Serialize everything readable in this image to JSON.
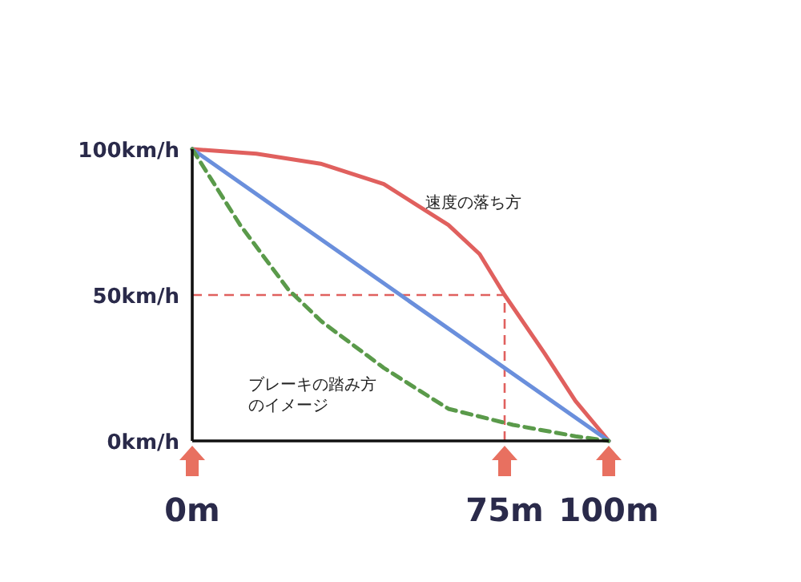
{
  "chart_data": {
    "type": "line",
    "xlim": [
      0,
      100
    ],
    "ylim": [
      0,
      100
    ],
    "xticks": [
      {
        "value": 0,
        "label": "0m"
      },
      {
        "value": 75,
        "label": "75m"
      },
      {
        "value": 100,
        "label": "100m"
      }
    ],
    "yticks": [
      {
        "value": 0,
        "label": "0km/h"
      },
      {
        "value": 50,
        "label": "50km/h"
      },
      {
        "value": 100,
        "label": "100km/h"
      }
    ],
    "marker": "none",
    "series": [
      {
        "color": "#e0605e",
        "line_style": "solid",
        "x": [
          0,
          15.4,
          30.8,
          46,
          61.5,
          69,
          75,
          84.6,
          92,
          100
        ],
        "values": [
          100,
          98.4,
          95,
          88,
          74,
          64,
          50,
          30,
          13.7,
          0
        ]
      },
      {
        "color": "#6a8fdc",
        "line_style": "solid",
        "x": [
          0,
          100
        ],
        "values": [
          100,
          0
        ]
      },
      {
        "color": "#5a9a4a",
        "line_style": "dashed",
        "x": [
          0,
          11.5,
          23,
          31,
          46,
          61.5,
          77,
          92,
          100
        ],
        "values": [
          100,
          74,
          52,
          41,
          25,
          11,
          5.5,
          1.6,
          0
        ]
      }
    ],
    "ref_lines": [
      {
        "axis": "x",
        "value": 75,
        "color": "#e0605e",
        "line_style": "dashed"
      },
      {
        "axis": "y",
        "value": 50,
        "color": "#e0605e",
        "line_style": "dashed"
      }
    ],
    "annotations": [
      {
        "text": "速度の落ち方",
        "x": 56,
        "y": 80
      },
      "ブレーキの踏み方のイメージ"
    ]
  }
}
